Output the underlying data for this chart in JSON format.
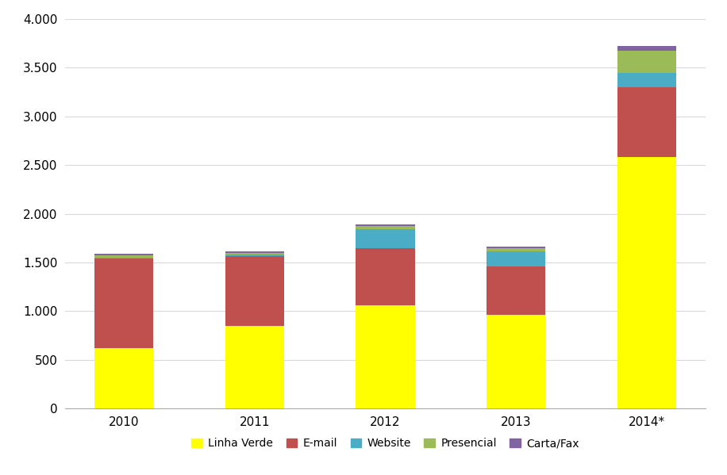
{
  "categories": [
    "2010",
    "2011",
    "2012",
    "2013",
    "2014*"
  ],
  "series": {
    "Linha Verde": [
      620,
      850,
      1060,
      965,
      2580
    ],
    "E-mail": [
      920,
      715,
      590,
      490,
      720
    ],
    "Website": [
      12,
      18,
      195,
      155,
      145
    ],
    "Presencial": [
      22,
      18,
      30,
      38,
      230
    ],
    "Carta/Fax": [
      16,
      12,
      15,
      17,
      50
    ]
  },
  "colors": {
    "Linha Verde": "#ffff00",
    "E-mail": "#c0504d",
    "Website": "#4bacc6",
    "Presencial": "#9bbb59",
    "Carta/Fax": "#8064a2"
  },
  "ylim": [
    0,
    4000
  ],
  "yticks": [
    0,
    500,
    1000,
    1500,
    2000,
    2500,
    3000,
    3500,
    4000
  ],
  "ylabel": "",
  "xlabel": "",
  "background_color": "#ffffff",
  "bar_width": 0.45,
  "title": "",
  "tick_fontsize": 11,
  "legend_fontsize": 10
}
